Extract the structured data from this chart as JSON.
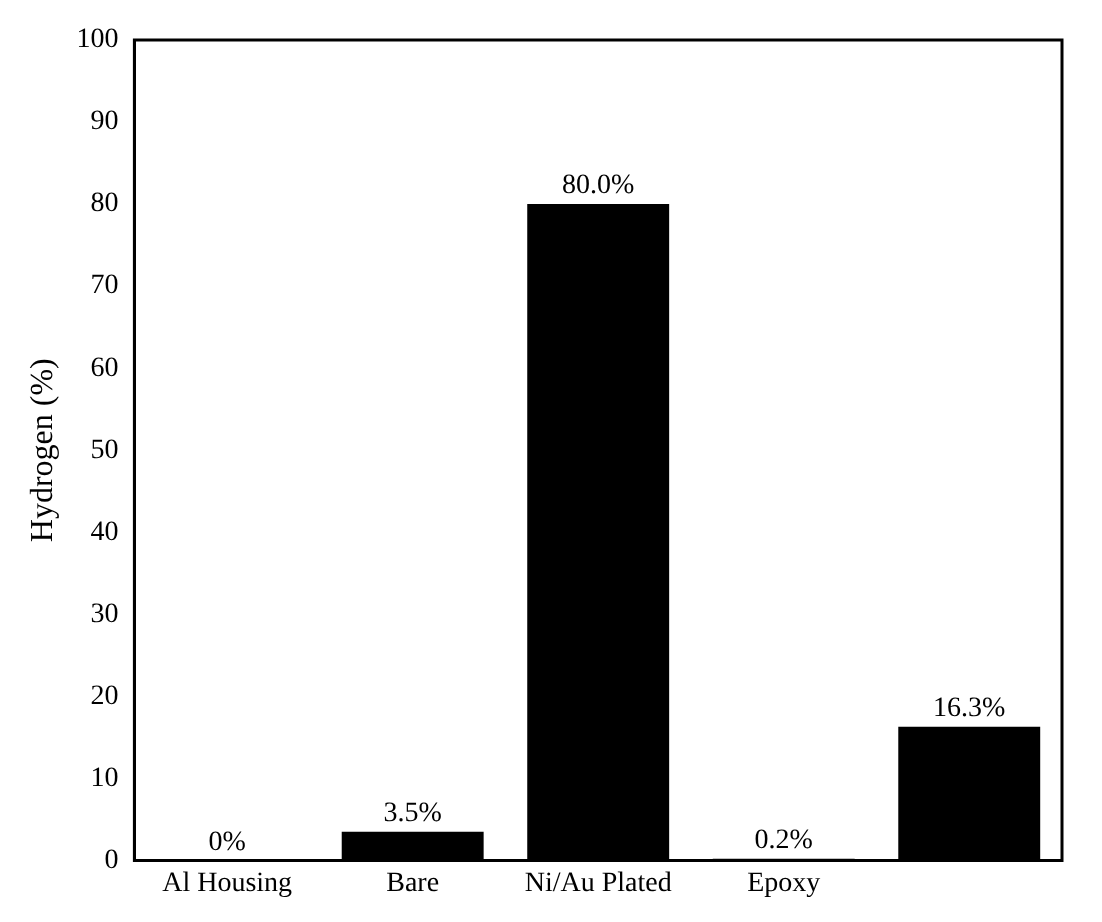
{
  "chart_data": {
    "type": "bar",
    "ylabel": "Hydrogen (%)",
    "categories": [
      "Al Housing",
      "Bare",
      "Ni/Au Plated",
      "Epoxy",
      null
    ],
    "values": [
      0,
      3.5,
      80.0,
      0.2,
      16.3
    ],
    "value_labels": [
      "0%",
      "3.5%",
      "80.0%",
      "0.2%",
      "16.3%"
    ],
    "color": "#000000",
    "ylim": [
      0,
      100
    ],
    "yticks": [
      0,
      10,
      20,
      30,
      40,
      50,
      60,
      70,
      80,
      90,
      100
    ],
    "grid": false,
    "legend": false
  }
}
